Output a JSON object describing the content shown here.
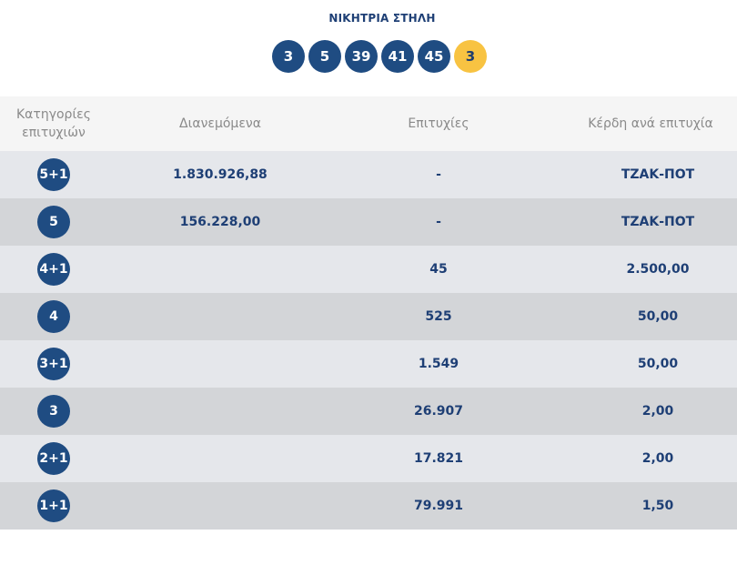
{
  "header": {
    "title": "ΝΙΚΗΤΡΙΑ ΣΤΗΛΗ",
    "numbers": [
      "3",
      "5",
      "39",
      "41",
      "45"
    ],
    "joker": "3",
    "colors": {
      "ball": "#1f4c82",
      "joker": "#f8c342"
    }
  },
  "table": {
    "columns": {
      "category": "Κατηγορίες επιτυχιών",
      "distributed": "Διανεμόμενα",
      "wins": "Επιτυχίες",
      "prize": "Κέρδη ανά επιτυχία"
    },
    "rows": [
      {
        "category": "5+1",
        "distributed": "1.830.926,88",
        "wins": "-",
        "prize": "ΤΖΑΚ-ΠΟΤ"
      },
      {
        "category": "5",
        "distributed": "156.228,00",
        "wins": "-",
        "prize": "ΤΖΑΚ-ΠΟΤ"
      },
      {
        "category": "4+1",
        "distributed": "",
        "wins": "45",
        "prize": "2.500,00"
      },
      {
        "category": "4",
        "distributed": "",
        "wins": "525",
        "prize": "50,00"
      },
      {
        "category": "3+1",
        "distributed": "",
        "wins": "1.549",
        "prize": "50,00"
      },
      {
        "category": "3",
        "distributed": "",
        "wins": "26.907",
        "prize": "2,00"
      },
      {
        "category": "2+1",
        "distributed": "",
        "wins": "17.821",
        "prize": "2,00"
      },
      {
        "category": "1+1",
        "distributed": "",
        "wins": "79.991",
        "prize": "1,50"
      }
    ]
  }
}
